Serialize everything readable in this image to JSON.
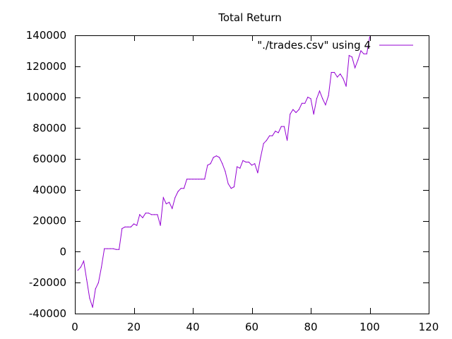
{
  "chart_data": {
    "type": "line",
    "title": "Total Return",
    "xlabel": "",
    "ylabel": "",
    "xlim": [
      0,
      120
    ],
    "ylim": [
      -40000,
      140000
    ],
    "xticks": [
      0,
      20,
      40,
      60,
      80,
      100,
      120
    ],
    "yticks": [
      -40000,
      -20000,
      0,
      20000,
      40000,
      60000,
      80000,
      100000,
      120000,
      140000
    ],
    "xtick_labels": [
      "0",
      "20",
      "40",
      "60",
      "80",
      "100",
      "120"
    ],
    "ytick_labels": [
      "-40000",
      "-20000",
      "0",
      "20000",
      "40000",
      "60000",
      "80000",
      "100000",
      "120000",
      "140000"
    ],
    "grid": false,
    "legend_position": "top-right",
    "series": [
      {
        "name": "\"./trades.csv\" using 4",
        "color": "#9400d3",
        "x": [
          1,
          2,
          3,
          4,
          5,
          6,
          7,
          8,
          9,
          10,
          11,
          12,
          13,
          14,
          15,
          16,
          17,
          18,
          19,
          20,
          21,
          22,
          23,
          24,
          25,
          26,
          27,
          28,
          29,
          30,
          31,
          32,
          33,
          34,
          35,
          36,
          37,
          38,
          39,
          40,
          41,
          42,
          43,
          44,
          45,
          46,
          47,
          48,
          49,
          50,
          51,
          52,
          53,
          54,
          55,
          56,
          57,
          58,
          59,
          60,
          61,
          62,
          63,
          64,
          65,
          66,
          67,
          68,
          69,
          70,
          71,
          72,
          73,
          74,
          75,
          76,
          77,
          78,
          79,
          80,
          81,
          82,
          83,
          84,
          85,
          86,
          87,
          88,
          89,
          90,
          91,
          92,
          93,
          94,
          95,
          96,
          97,
          98,
          99,
          100
        ],
        "y": [
          -12000,
          -10000,
          -6000,
          -18000,
          -30000,
          -36000,
          -24000,
          -20000,
          -10000,
          2000,
          2000,
          2000,
          2000,
          1500,
          1500,
          15000,
          16000,
          16000,
          16000,
          18000,
          17000,
          24000,
          22000,
          25000,
          25000,
          24000,
          24000,
          24000,
          17000,
          35000,
          31000,
          32000,
          28000,
          35000,
          39000,
          41000,
          41000,
          47000,
          47000,
          47000,
          47000,
          47000,
          47000,
          47000,
          56000,
          57000,
          61000,
          62000,
          61000,
          57000,
          52000,
          44000,
          41000,
          42000,
          55000,
          54000,
          59000,
          58000,
          58000,
          56000,
          57000,
          51000,
          61000,
          70000,
          72000,
          75000,
          75000,
          78000,
          77000,
          81000,
          81000,
          72000,
          89000,
          92000,
          90000,
          92000,
          96000,
          96000,
          100000,
          99000,
          89000,
          99000,
          104000,
          99000,
          95000,
          101000,
          116000,
          116000,
          113000,
          115000,
          112000,
          107000,
          127000,
          126000,
          119000,
          124000,
          130000,
          128000,
          128000,
          139000
        ]
      }
    ]
  }
}
